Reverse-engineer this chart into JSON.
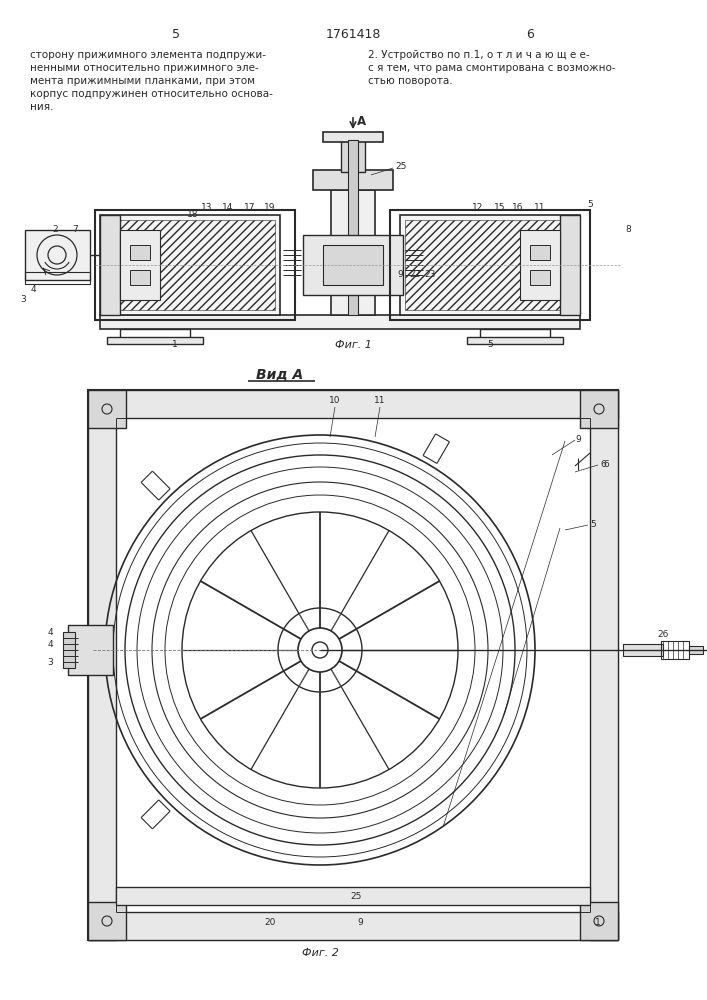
{
  "bg_color": "#ffffff",
  "line_color": "#2a2a2a",
  "page_number_left": "5",
  "page_number_center": "1761418",
  "page_number_right": "6",
  "text_left_lines": [
    "сторону прижимного элемента подпружи-",
    "ненными относительно прижимного эле-",
    "мента прижимными планками, при этом",
    "корпус подпружинен относительно основа-",
    "ния."
  ],
  "text_right_lines": [
    "2. Устройство по п.1, о т л и ч а ю щ е е-",
    "с я тем, что рама смонтирована с возможно-",
    "стью поворота."
  ],
  "fig1_label": "Фиг. 1",
  "fig2_label": "Фиг. 2",
  "vid_a_label": "Вид А",
  "label_A": "А"
}
